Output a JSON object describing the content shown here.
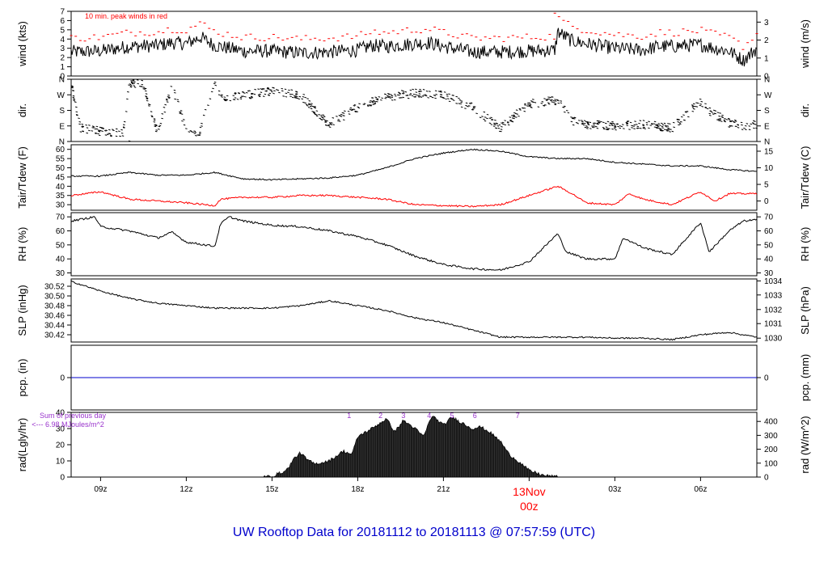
{
  "chart_data": {
    "type": "line",
    "title": "UW Rooftop Data for 20181112  to  20181113 @ 07:57:59  (UTC)",
    "title_color": "#0000cc",
    "x_axis": {
      "ticks": [
        {
          "hour": 9,
          "label": "09z"
        },
        {
          "hour": 12,
          "label": "12z"
        },
        {
          "hour": 15,
          "label": "15z"
        },
        {
          "hour": 18,
          "label": "18z"
        },
        {
          "hour": 21,
          "label": "21z"
        },
        {
          "hour": 27,
          "label": "03z"
        },
        {
          "hour": 30,
          "label": "06z"
        }
      ],
      "day_marker": {
        "hour": 24,
        "date_label": "13Nov",
        "time_label": "00z",
        "color": "#ff0000"
      },
      "xlim": [
        7.97,
        31.97
      ]
    },
    "panels": [
      {
        "id": "wind",
        "ylabel_left": "wind (kts)",
        "ylabel_right": "wind (m/s)",
        "ylim": [
          0,
          7
        ],
        "left_ticks": [
          0,
          1,
          2,
          3,
          4,
          5,
          6,
          7
        ],
        "right_ticks": [
          {
            "v": 0,
            "label": "0"
          },
          {
            "v": 1.944,
            "label": "1"
          },
          {
            "v": 3.888,
            "label": "2"
          },
          {
            "v": 5.832,
            "label": "3"
          }
        ],
        "annotation": "10 min. peak winds in red",
        "annotation_color": "#ff0000",
        "keypoints": [
          [
            7.97,
            2.6
          ],
          [
            9,
            2.7
          ],
          [
            10,
            3.2
          ],
          [
            11,
            3.3
          ],
          [
            11.5,
            3.6
          ],
          [
            12,
            3.5
          ],
          [
            12.5,
            4.2
          ],
          [
            13,
            3.3
          ],
          [
            14,
            2.7
          ],
          [
            15,
            2.7
          ],
          [
            16,
            2.5
          ],
          [
            17,
            2.6
          ],
          [
            18,
            2.8
          ],
          [
            18.5,
            3.3
          ],
          [
            19,
            3.2
          ],
          [
            20,
            3.5
          ],
          [
            20.5,
            3.6
          ],
          [
            21,
            3.2
          ],
          [
            22,
            2.6
          ],
          [
            23,
            2.6
          ],
          [
            24,
            2.7
          ],
          [
            24.9,
            2.8
          ],
          [
            25,
            4.8
          ],
          [
            25.5,
            3.8
          ],
          [
            26,
            3.5
          ],
          [
            27,
            3.0
          ],
          [
            28,
            2.8
          ],
          [
            28.5,
            3.2
          ],
          [
            29,
            3.2
          ],
          [
            30,
            3.4
          ],
          [
            30.5,
            3.0
          ],
          [
            31,
            2.7
          ],
          [
            31.5,
            1.7
          ],
          [
            31.97,
            3.0
          ]
        ],
        "gust_color": "#ff0000",
        "peak_gust": {
          "hour": 24.9,
          "value": 6.8
        }
      },
      {
        "id": "dir",
        "ylabel_left": "dir.",
        "ylabel_right": "dir.",
        "ylim": [
          0,
          360
        ],
        "left_ticks": [
          {
            "v": 0,
            "label": "N"
          },
          {
            "v": 90,
            "label": "E"
          },
          {
            "v": 180,
            "label": "S"
          },
          {
            "v": 270,
            "label": "W"
          },
          {
            "v": 360,
            "label": "N"
          }
        ],
        "right_ticks": [
          {
            "v": 0,
            "label": "N"
          },
          {
            "v": 90,
            "label": "E"
          },
          {
            "v": 180,
            "label": "S"
          },
          {
            "v": 270,
            "label": "W"
          },
          {
            "v": 360,
            "label": "N"
          }
        ],
        "keypoints": [
          [
            7.97,
            330
          ],
          [
            8.3,
            80
          ],
          [
            9,
            60
          ],
          [
            9.8,
            50
          ],
          [
            10,
            340
          ],
          [
            10.5,
            330
          ],
          [
            11,
            50
          ],
          [
            11.5,
            330
          ],
          [
            12,
            60
          ],
          [
            12.5,
            60
          ],
          [
            13,
            350
          ],
          [
            13.2,
            250
          ],
          [
            14,
            270
          ],
          [
            15,
            290
          ],
          [
            16,
            270
          ],
          [
            17,
            100
          ],
          [
            18,
            200
          ],
          [
            19,
            260
          ],
          [
            20,
            280
          ],
          [
            21,
            270
          ],
          [
            22,
            200
          ],
          [
            23,
            80
          ],
          [
            24,
            220
          ],
          [
            25,
            240
          ],
          [
            25.5,
            120
          ],
          [
            26,
            100
          ],
          [
            27,
            90
          ],
          [
            28,
            100
          ],
          [
            29,
            80
          ],
          [
            30,
            230
          ],
          [
            30.3,
            180
          ],
          [
            31,
            110
          ],
          [
            31.5,
            90
          ],
          [
            31.97,
            100
          ]
        ]
      },
      {
        "id": "temp",
        "ylabel_left": "Tair/Tdew (F)",
        "ylabel_right": "Tair/Tdew (C)",
        "ylim": [
          27,
          62.5
        ],
        "left_ticks": [
          30,
          35,
          40,
          45,
          50,
          55,
          60
        ],
        "right_ticks": [
          {
            "v": 32,
            "label": "0"
          },
          {
            "v": 41,
            "label": "5"
          },
          {
            "v": 50,
            "label": "10"
          },
          {
            "v": 59,
            "label": "15"
          }
        ],
        "tdew_color": "#ff0000",
        "tair_keypoints": [
          [
            7.97,
            45.5
          ],
          [
            9,
            45.5
          ],
          [
            10,
            47.5
          ],
          [
            11,
            46
          ],
          [
            12,
            46
          ],
          [
            13,
            47.5
          ],
          [
            14,
            44
          ],
          [
            15,
            43.5
          ],
          [
            16,
            44
          ],
          [
            17,
            44.5
          ],
          [
            18,
            46
          ],
          [
            19,
            50
          ],
          [
            20,
            55
          ],
          [
            21,
            58
          ],
          [
            22,
            60
          ],
          [
            23,
            59
          ],
          [
            24,
            56
          ],
          [
            25,
            55
          ],
          [
            26,
            55
          ],
          [
            27,
            53
          ],
          [
            28,
            52
          ],
          [
            29,
            51
          ],
          [
            30,
            51
          ],
          [
            31,
            49
          ],
          [
            31.97,
            48
          ]
        ],
        "tdew_keypoints": [
          [
            7.97,
            35
          ],
          [
            9,
            37
          ],
          [
            10,
            33
          ],
          [
            11,
            32
          ],
          [
            12,
            31
          ],
          [
            13,
            29.5
          ],
          [
            13.2,
            33
          ],
          [
            14,
            34
          ],
          [
            15,
            34
          ],
          [
            16,
            35
          ],
          [
            17,
            35
          ],
          [
            18,
            34
          ],
          [
            19,
            33
          ],
          [
            20,
            30
          ],
          [
            21,
            29.5
          ],
          [
            22,
            29
          ],
          [
            23,
            30
          ],
          [
            24,
            35
          ],
          [
            25,
            40
          ],
          [
            25.5,
            36
          ],
          [
            26,
            31
          ],
          [
            27,
            30
          ],
          [
            27.5,
            36
          ],
          [
            28,
            33
          ],
          [
            29,
            30
          ],
          [
            30,
            37
          ],
          [
            30.5,
            32
          ],
          [
            31,
            36
          ],
          [
            31.97,
            36
          ]
        ]
      },
      {
        "id": "rh",
        "ylabel_left": "RH (%)",
        "ylabel_right": "RH (%)",
        "ylim": [
          28,
          73
        ],
        "left_ticks": [
          30,
          40,
          50,
          60,
          70
        ],
        "right_ticks": [
          {
            "v": 30,
            "label": "30"
          },
          {
            "v": 40,
            "label": "40"
          },
          {
            "v": 50,
            "label": "50"
          },
          {
            "v": 60,
            "label": "60"
          },
          {
            "v": 70,
            "label": "70"
          }
        ],
        "keypoints": [
          [
            7.97,
            67
          ],
          [
            8.8,
            70
          ],
          [
            9,
            63
          ],
          [
            10,
            60
          ],
          [
            11,
            55
          ],
          [
            11.5,
            59
          ],
          [
            12,
            52
          ],
          [
            13,
            49
          ],
          [
            13.2,
            65
          ],
          [
            13.5,
            70
          ],
          [
            14,
            67
          ],
          [
            15,
            64
          ],
          [
            16,
            63
          ],
          [
            17,
            60
          ],
          [
            18,
            56
          ],
          [
            19,
            50
          ],
          [
            20,
            42
          ],
          [
            21,
            36
          ],
          [
            22,
            33
          ],
          [
            23,
            32
          ],
          [
            24,
            38
          ],
          [
            25,
            58
          ],
          [
            25.3,
            45
          ],
          [
            26,
            40
          ],
          [
            27,
            40
          ],
          [
            27.3,
            55
          ],
          [
            28,
            48
          ],
          [
            29,
            43
          ],
          [
            30,
            66
          ],
          [
            30.3,
            45
          ],
          [
            31,
            60
          ],
          [
            31.5,
            67
          ],
          [
            31.97,
            68
          ]
        ]
      },
      {
        "id": "slp",
        "ylabel_left": "SLP (inHg)",
        "ylabel_right": "SLP (hPa)",
        "ylim": [
          30.405,
          30.535
        ],
        "left_ticks": [
          {
            "v": 30.42,
            "label": "30.42"
          },
          {
            "v": 30.44,
            "label": "30.44"
          },
          {
            "v": 30.46,
            "label": "30.46"
          },
          {
            "v": 30.48,
            "label": "30.48"
          },
          {
            "v": 30.5,
            "label": "30.50"
          },
          {
            "v": 30.52,
            "label": "30.52"
          }
        ],
        "right_ticks": [
          {
            "v": 30.413,
            "label": "1030"
          },
          {
            "v": 30.443,
            "label": "1031"
          },
          {
            "v": 30.472,
            "label": "1032"
          },
          {
            "v": 30.502,
            "label": "1033"
          },
          {
            "v": 30.531,
            "label": "1034"
          }
        ],
        "keypoints": [
          [
            7.97,
            30.53
          ],
          [
            9,
            30.51
          ],
          [
            10,
            30.495
          ],
          [
            11,
            30.485
          ],
          [
            12,
            30.48
          ],
          [
            13,
            30.475
          ],
          [
            14,
            30.475
          ],
          [
            15,
            30.475
          ],
          [
            16,
            30.48
          ],
          [
            17,
            30.49
          ],
          [
            18,
            30.48
          ],
          [
            19,
            30.47
          ],
          [
            20,
            30.455
          ],
          [
            21,
            30.445
          ],
          [
            22,
            30.43
          ],
          [
            23,
            30.415
          ],
          [
            24,
            30.415
          ],
          [
            25,
            30.415
          ],
          [
            26,
            30.415
          ],
          [
            27,
            30.413
          ],
          [
            28,
            30.413
          ],
          [
            29,
            30.41
          ],
          [
            30,
            30.42
          ],
          [
            31,
            30.425
          ],
          [
            31.97,
            30.415
          ]
        ]
      },
      {
        "id": "pcp",
        "ylabel_left": "pcp. (in)",
        "ylabel_right": "pcp. (mm)",
        "ylim": [
          -1,
          1
        ],
        "left_ticks": [
          {
            "v": 0,
            "label": "0"
          }
        ],
        "right_ticks": [
          {
            "v": 0,
            "label": "0"
          }
        ],
        "value": 0,
        "line_color": "#0000cc"
      },
      {
        "id": "rad",
        "ylabel_left": "rad(Lgly/hr)",
        "ylabel_right": "rad (W/m^2)",
        "ylim": [
          0,
          40
        ],
        "left_ticks": [
          0,
          10,
          20,
          30,
          40
        ],
        "right_ticks": [
          {
            "v": 0,
            "label": "0"
          },
          {
            "v": 8.6,
            "label": "100"
          },
          {
            "v": 17.2,
            "label": "200"
          },
          {
            "v": 25.8,
            "label": "300"
          },
          {
            "v": 34.4,
            "label": "400"
          }
        ],
        "note_lines": [
          "Sum of previous day",
          "<--- 6.98 MJoules/m^2"
        ],
        "note_color": "#9933cc",
        "markers": [
          {
            "hour": 17.7,
            "label": "1"
          },
          {
            "hour": 18.8,
            "label": "2"
          },
          {
            "hour": 19.6,
            "label": "3"
          },
          {
            "hour": 20.5,
            "label": "4"
          },
          {
            "hour": 21.3,
            "label": "5"
          },
          {
            "hour": 22.1,
            "label": "6"
          },
          {
            "hour": 23.6,
            "label": "7"
          }
        ],
        "keypoints": [
          [
            14.7,
            0
          ],
          [
            15,
            0.5
          ],
          [
            15.5,
            4
          ],
          [
            15.8,
            12
          ],
          [
            16,
            15
          ],
          [
            16.2,
            11
          ],
          [
            16.5,
            8
          ],
          [
            17,
            10
          ],
          [
            17.5,
            16
          ],
          [
            17.8,
            14
          ],
          [
            18,
            25
          ],
          [
            18.5,
            30
          ],
          [
            19,
            36
          ],
          [
            19.3,
            28
          ],
          [
            19.6,
            35
          ],
          [
            20,
            30
          ],
          [
            20.3,
            25
          ],
          [
            20.6,
            38
          ],
          [
            21,
            32
          ],
          [
            21.3,
            37
          ],
          [
            21.6,
            34
          ],
          [
            22,
            30
          ],
          [
            22.3,
            31
          ],
          [
            22.6,
            28
          ],
          [
            23,
            22
          ],
          [
            23.3,
            14
          ],
          [
            23.6,
            10
          ],
          [
            24,
            4
          ],
          [
            24.5,
            1
          ],
          [
            25,
            0
          ]
        ]
      }
    ]
  }
}
